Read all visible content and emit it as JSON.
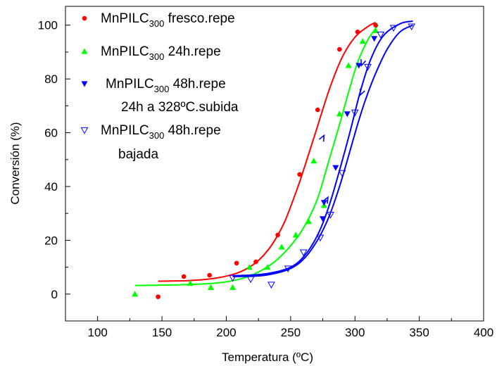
{
  "chart_data": {
    "type": "scatter",
    "xlabel": "Temperatura (ºC)",
    "ylabel": "Conversión (%)",
    "xlim": [
      75,
      400
    ],
    "ylim": [
      -10,
      107
    ],
    "xticks": [
      100,
      150,
      200,
      250,
      300,
      350,
      400
    ],
    "yticks": [
      0,
      20,
      40,
      60,
      80,
      100
    ],
    "xtick_labels": [
      "100",
      "150",
      "200",
      "250",
      "300",
      "350",
      "400"
    ],
    "ytick_labels": [
      "0",
      "20",
      "40",
      "60",
      "80",
      "100"
    ],
    "legend_position": "top-left",
    "series": [
      {
        "legend": {
          "main": "MnPILC",
          "sub": "300",
          "rest": " fresco.repe",
          "extra": ""
        },
        "color": "#ff0000",
        "marker": "circle",
        "points": [
          [
            147,
            -1
          ],
          [
            167,
            6.5
          ],
          [
            187,
            7
          ],
          [
            208,
            11.5
          ],
          [
            223,
            12
          ],
          [
            240,
            22
          ],
          [
            257,
            44.5
          ],
          [
            271,
            68.5
          ],
          [
            288,
            91
          ],
          [
            302,
            97.5
          ],
          [
            316,
            100
          ]
        ],
        "curve": [
          [
            147,
            4.8
          ],
          [
            170,
            5
          ],
          [
            190,
            5.8
          ],
          [
            205,
            7.3
          ],
          [
            215,
            9.2
          ],
          [
            225,
            12.5
          ],
          [
            235,
            18
          ],
          [
            245,
            26.5
          ],
          [
            255,
            39
          ],
          [
            262,
            49
          ],
          [
            270,
            61
          ],
          [
            280,
            76
          ],
          [
            290,
            88
          ],
          [
            300,
            95.5
          ],
          [
            310,
            99.5
          ],
          [
            316,
            101
          ]
        ]
      },
      {
        "legend": {
          "main": "MnPILC",
          "sub": "300",
          "rest": " 24h.repe",
          "extra": ""
        },
        "color": "#00ff00",
        "marker": "triangle-up",
        "points": [
          [
            129,
            0
          ],
          [
            172,
            4
          ],
          [
            188,
            2.5
          ],
          [
            205,
            2.5
          ],
          [
            218,
            10
          ],
          [
            232,
            10
          ],
          [
            243,
            17.5
          ],
          [
            254,
            22
          ],
          [
            264,
            27
          ],
          [
            276,
            33
          ],
          [
            268,
            49.5
          ],
          [
            288,
            67
          ],
          [
            295,
            85
          ],
          [
            306,
            94
          ],
          [
            316,
            98
          ]
        ],
        "curve": [
          [
            129,
            3.2
          ],
          [
            160,
            3.4
          ],
          [
            190,
            4
          ],
          [
            210,
            5.5
          ],
          [
            225,
            8.2
          ],
          [
            240,
            13
          ],
          [
            255,
            21
          ],
          [
            265,
            29
          ],
          [
            272,
            37
          ],
          [
            280,
            50
          ],
          [
            288,
            63
          ],
          [
            295,
            75
          ],
          [
            302,
            86
          ],
          [
            310,
            94.5
          ],
          [
            318,
            100
          ]
        ]
      },
      {
        "legend": {
          "main": "MnPILC",
          "sub": "300",
          "rest": " 48h.repe",
          "extra": "24h a 328ºC.subida"
        },
        "color": "#0000ff",
        "marker": "triangle-down",
        "points": [
          [
            275,
            28
          ],
          [
            276,
            34
          ],
          [
            285,
            47
          ],
          [
            294,
            67
          ],
          [
            303,
            85
          ],
          [
            315,
            95
          ]
        ],
        "curve": [
          [
            205,
            6.8
          ],
          [
            230,
            7.5
          ],
          [
            250,
            10
          ],
          [
            262,
            15
          ],
          [
            272,
            23
          ],
          [
            280,
            33
          ],
          [
            288,
            46
          ],
          [
            296,
            60
          ],
          [
            304,
            75
          ],
          [
            312,
            87
          ],
          [
            322,
            96
          ],
          [
            335,
            100.5
          ],
          [
            345,
            101.5
          ]
        ]
      },
      {
        "legend": {
          "main": "MnPILC",
          "sub": "300",
          "rest": " 48h.repe",
          "extra": "bajada"
        },
        "color": "#0000ff",
        "marker": "triangle-down-open",
        "points": [
          [
            205,
            6
          ],
          [
            219,
            5.5
          ],
          [
            235,
            3.5
          ],
          [
            248,
            9.5
          ],
          [
            260,
            15.5
          ],
          [
            273,
            21
          ],
          [
            281,
            29.5
          ],
          [
            290,
            45
          ],
          [
            300,
            67.5
          ],
          [
            310,
            84.5
          ],
          [
            320,
            96.5
          ],
          [
            330,
            99
          ],
          [
            344,
            99.5
          ]
        ],
        "curve": [
          [
            205,
            6.5
          ],
          [
            230,
            7
          ],
          [
            250,
            9.5
          ],
          [
            262,
            14
          ],
          [
            272,
            21
          ],
          [
            280,
            29
          ],
          [
            288,
            40
          ],
          [
            296,
            53
          ],
          [
            302,
            63
          ],
          [
            308,
            72
          ],
          [
            316,
            82
          ],
          [
            325,
            91
          ],
          [
            335,
            97.5
          ],
          [
            345,
            100
          ]
        ]
      }
    ]
  }
}
